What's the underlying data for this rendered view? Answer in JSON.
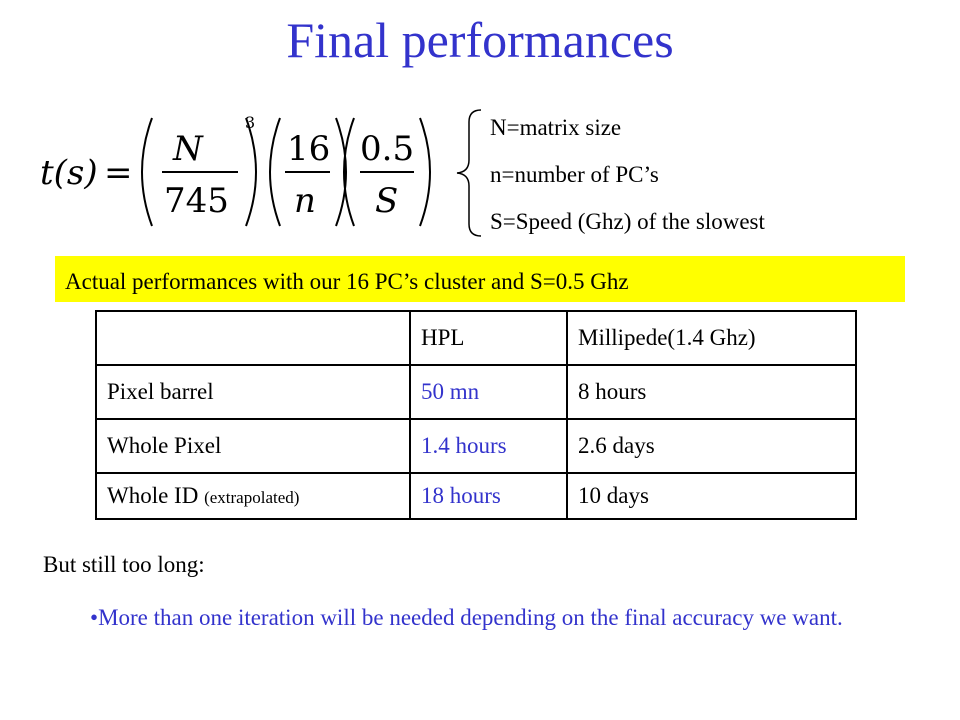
{
  "slide": {
    "title": "Final performances",
    "formula": {
      "lhs": "t(s)",
      "eq": "=",
      "f1_num": "N",
      "f1_den": "745",
      "exponent": "3",
      "f2_num": "16",
      "f2_den": "n",
      "f3_num": "0.5",
      "f3_den": "S"
    },
    "definitions": [
      "N=matrix size",
      "n=number  of PC’s",
      "S=Speed (Ghz) of the slowest"
    ],
    "highlight": "Actual performances with our 16 PC’s cluster and S=0.5 Ghz",
    "table": {
      "headers": [
        "",
        "HPL",
        "Millipede(1.4 Ghz)"
      ],
      "rows": [
        {
          "label": "Pixel barrel",
          "note": "",
          "hpl": "50 mn",
          "millipede": "8 hours"
        },
        {
          "label": "Whole Pixel",
          "note": "",
          "hpl": "1.4 hours",
          "millipede": "2.6 days"
        },
        {
          "label": "Whole ID ",
          "note": "(extrapolated)",
          "hpl": "18 hours",
          "millipede": "10 days"
        }
      ]
    },
    "conclusion": "But still too long:",
    "bullet_marker": "•",
    "bullet": "More than one iteration will be needed depending on the final accuracy we want.",
    "colors": {
      "accent": "#3333cc",
      "highlight": "#ffff00"
    }
  }
}
